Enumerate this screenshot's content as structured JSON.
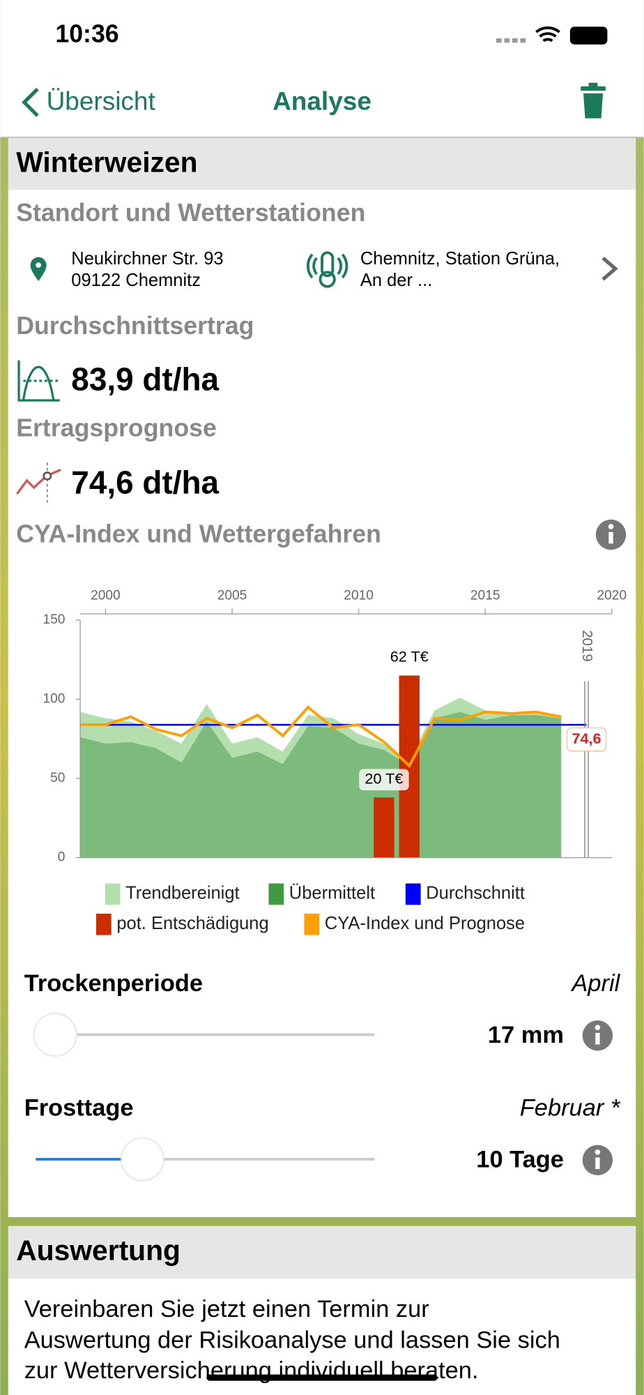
{
  "status": {
    "time": "10:36"
  },
  "nav": {
    "back": "Übersicht",
    "title": "Analyse"
  },
  "section": {
    "title": "Winterweizen"
  },
  "location": {
    "heading": "Standort und Wetterstationen",
    "address": [
      "Neukirchner Str. 93",
      "09122 Chemnitz"
    ],
    "station": [
      "Chemnitz, Station Grüna,",
      "An der ..."
    ]
  },
  "average": {
    "heading": "Durchschnittsertrag",
    "value": "83,9 dt/ha"
  },
  "forecast": {
    "heading": "Ertragsprognose",
    "value": "74,6 dt/ha"
  },
  "chart_heading": "CYA-Index und Wettergefahren",
  "chart_data": {
    "type": "area",
    "x": [
      1999,
      2000,
      2001,
      2002,
      2003,
      2004,
      2005,
      2006,
      2007,
      2008,
      2009,
      2010,
      2011,
      2012,
      2013,
      2014,
      2015,
      2016,
      2017,
      2018
    ],
    "xlim": [
      1999,
      2020
    ],
    "xticks": [
      2000,
      2005,
      2010,
      2015,
      2020
    ],
    "ylim": [
      0,
      150
    ],
    "yticks": [
      0,
      50,
      100,
      150
    ],
    "series": [
      {
        "name": "Trendbereinigt",
        "type": "area",
        "color": "#b3dfae",
        "values": [
          92,
          88,
          86,
          80,
          72,
          97,
          72,
          76,
          67,
          90,
          88,
          78,
          72,
          62,
          93,
          101,
          93,
          92,
          91,
          89
        ]
      },
      {
        "name": "Übermittelt",
        "type": "area",
        "color": "#7dbb7c",
        "legend_color": "#3f9a3f",
        "values": [
          76,
          72,
          73,
          69,
          60,
          86,
          63,
          67,
          59,
          83,
          82,
          72,
          68,
          58,
          88,
          92,
          87,
          90,
          90,
          88
        ]
      },
      {
        "name": "Durchschnitt",
        "type": "hline",
        "color": "#0000ff",
        "value": 83.9
      },
      {
        "name": "pot. Entschädigung",
        "type": "bar",
        "color": "#cc2d00",
        "values": [
          null,
          null,
          null,
          null,
          null,
          null,
          null,
          null,
          null,
          null,
          null,
          null,
          38,
          115,
          null,
          null,
          null,
          null,
          null,
          null
        ]
      },
      {
        "name": "CYA-Index und Prognose",
        "type": "line",
        "color": "#ffa000",
        "values": [
          84,
          84,
          89,
          81,
          77,
          88,
          82,
          90,
          77,
          95,
          82,
          84,
          73,
          58,
          88,
          87,
          92,
          91,
          92,
          89
        ]
      }
    ],
    "annotations": [
      {
        "text": "20 T€",
        "x": 2011
      },
      {
        "text": "62 T€",
        "x": 2012
      }
    ],
    "prediction": {
      "x": 2019,
      "value": 74.6,
      "label": "74,6"
    }
  },
  "sliders": [
    {
      "label": "Trockenperiode",
      "period": "April",
      "value": "17 mm"
    },
    {
      "label": "Frosttage",
      "period": "Februar *",
      "value": "10 Tage"
    }
  ],
  "evaluation": {
    "title": "Auswertung",
    "lines": [
      "Vereinbaren Sie jetzt einen Termin zur",
      "Auswertung der Risikoanalyse und lassen Sie sich",
      "zur Wetterversicherung individuell beraten."
    ]
  }
}
